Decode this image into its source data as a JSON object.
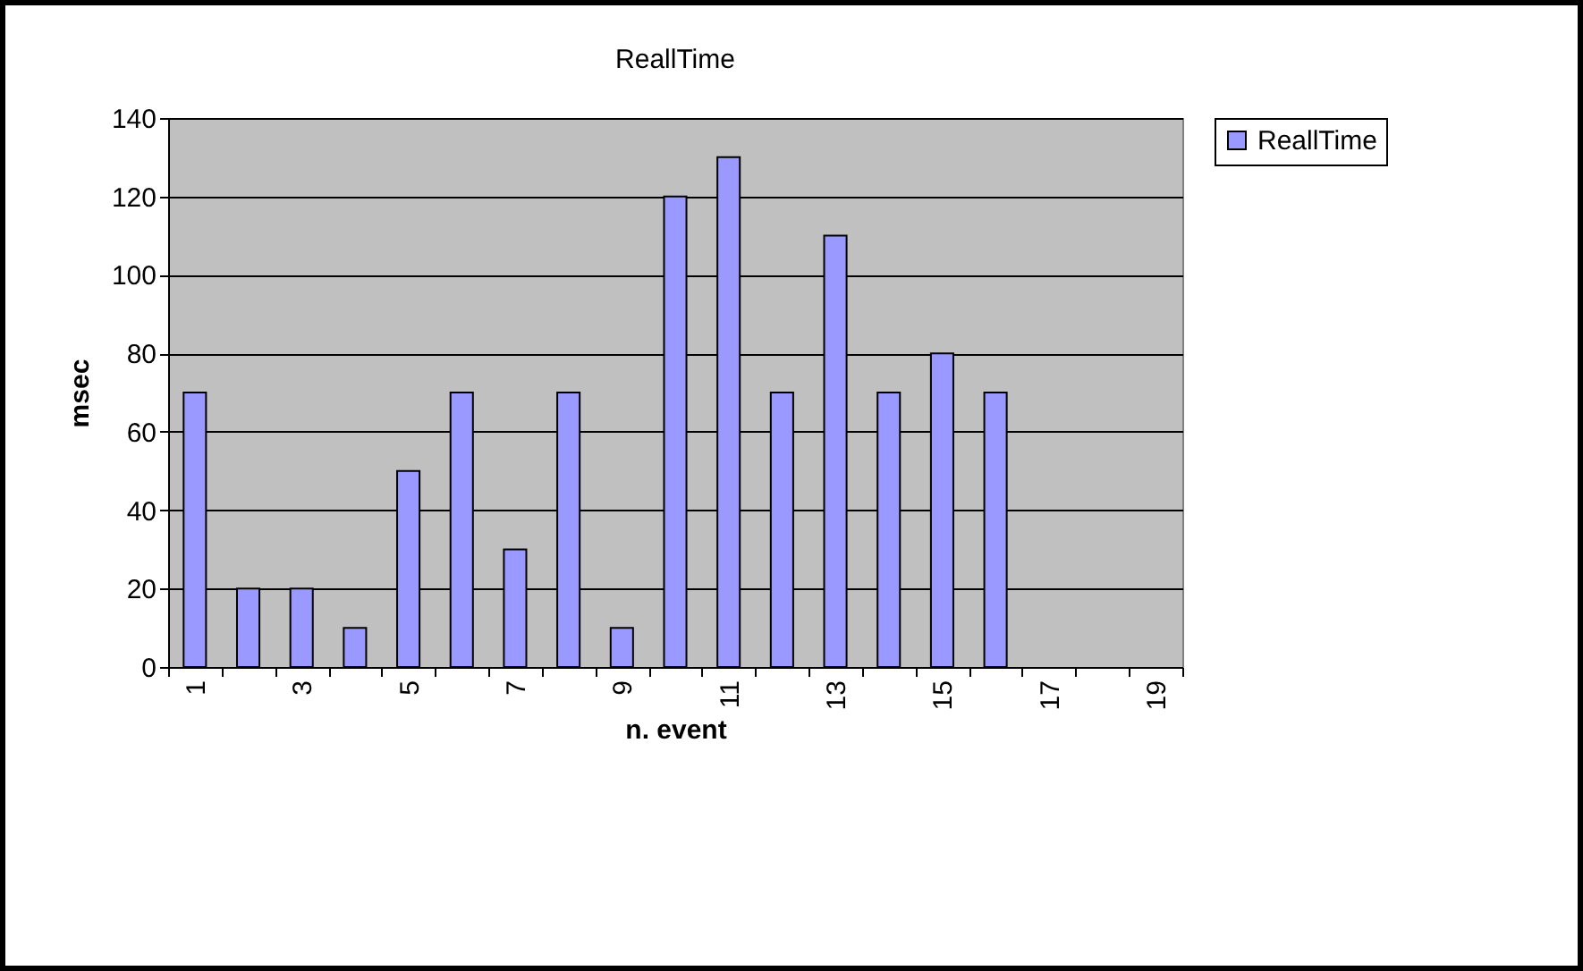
{
  "chart_data": {
    "type": "bar",
    "title": "ReallTime",
    "xlabel": "n. event",
    "ylabel": "msec",
    "categories": [
      "1",
      null,
      "3",
      null,
      "5",
      null,
      "7",
      null,
      "9",
      null,
      "11",
      null,
      "13",
      null,
      "15",
      null,
      "17",
      null,
      "19"
    ],
    "series": [
      {
        "name": "ReallTime",
        "color": "#9999ff",
        "values": [
          70,
          20,
          20,
          10,
          50,
          70,
          30,
          70,
          10,
          120,
          130,
          70,
          110,
          70,
          80,
          70,
          null,
          null,
          null
        ]
      }
    ],
    "ylim": [
      0,
      140
    ],
    "yticks": [
      0,
      20,
      40,
      60,
      80,
      100,
      120,
      140
    ],
    "grid": "y",
    "legend": "right"
  }
}
